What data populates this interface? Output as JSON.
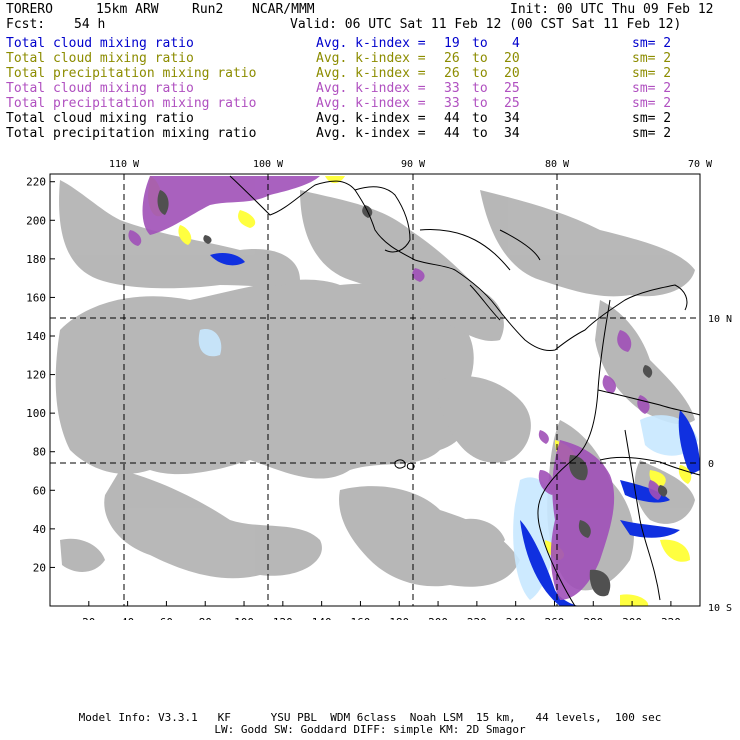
{
  "header": {
    "model": "TORERO",
    "resolution": "15km ARW",
    "run": "Run2",
    "center": "NCAR/MMM",
    "init": "Init: 00 UTC Thu 09 Feb 12",
    "fcst_label": "Fcst:",
    "fcst_value": "54 h",
    "valid": "Valid: 06 UTC Sat 11 Feb 12 (00 CST Sat 11 Feb 12)"
  },
  "legend": [
    {
      "name": "Total cloud mixing ratio",
      "kindex": "Avg. k-index =",
      "from": "19",
      "to_word": "to",
      "to": "4",
      "sm": "sm= 2",
      "color": "#0000cc"
    },
    {
      "name": "Total cloud mixing ratio",
      "kindex": "Avg. k-index =",
      "from": "26",
      "to_word": "to",
      "to": "20",
      "sm": "sm= 2",
      "color": "#8c8c00"
    },
    {
      "name": "Total precipitation mixing ratio",
      "kindex": "Avg. k-index =",
      "from": "26",
      "to_word": "to",
      "to": "20",
      "sm": "sm= 2",
      "color": "#8c8c00"
    },
    {
      "name": "Total cloud mixing ratio",
      "kindex": "Avg. k-index =",
      "from": "33",
      "to_word": "to",
      "to": "25",
      "sm": "sm= 2",
      "color": "#b050c0"
    },
    {
      "name": "Total precipitation mixing ratio",
      "kindex": "Avg. k-index =",
      "from": "33",
      "to_word": "to",
      "to": "25",
      "sm": "sm= 2",
      "color": "#b050c0"
    },
    {
      "name": "Total cloud mixing ratio",
      "kindex": "Avg. k-index =",
      "from": "44",
      "to_word": "to",
      "to": "34",
      "sm": "sm= 2",
      "color": "#000000"
    },
    {
      "name": "Total precipitation mixing ratio",
      "kindex": "Avg. k-index =",
      "from": "44",
      "to_word": "to",
      "to": "34",
      "sm": "sm= 2",
      "color": "#000000"
    }
  ],
  "map": {
    "lon_labels": [
      "110 W",
      "100 W",
      "90 W",
      "80 W",
      "70 W"
    ],
    "lat_labels": [
      "10 N",
      "0",
      "10 S"
    ],
    "x_ticks": [
      "20",
      "40",
      "60",
      "80",
      "100",
      "120",
      "140",
      "160",
      "180",
      "200",
      "220",
      "240",
      "260",
      "280",
      "300",
      "320"
    ],
    "y_ticks": [
      "220",
      "200",
      "180",
      "160",
      "140",
      "120",
      "100",
      "80",
      "60",
      "40",
      "20"
    ],
    "colors": {
      "cloud_gray": "#b4b4b4",
      "dark_gray": "#505050",
      "purple": "#a050b8",
      "yellow": "#ffff40",
      "blue": "#1030e0",
      "light_blue": "#c8e8ff",
      "coast": "#000000"
    }
  },
  "footer": {
    "line1": "Model Info: V3.3.1   KF      YSU PBL  WDM 6class  Noah LSM  15 km,   44 levels,  100 sec",
    "line2": "LW: Godd SW: Goddard DIFF: simple KM: 2D Smagor"
  }
}
